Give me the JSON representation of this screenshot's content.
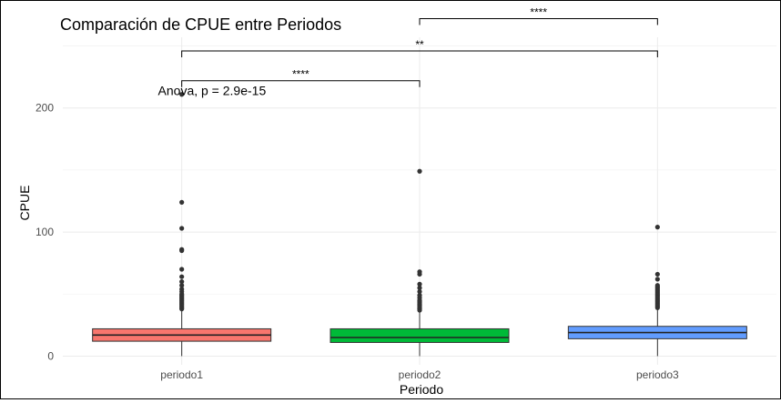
{
  "chart_data": {
    "type": "box",
    "title": "Comparación de CPUE entre Periodos",
    "xlabel": "Periodo",
    "ylabel": "CPUE",
    "ylim": [
      -7,
      257
    ],
    "y_ticks": [
      0,
      100,
      200
    ],
    "y_tick_labels": [
      "0",
      "100",
      "200"
    ],
    "categories": [
      "periodo1",
      "periodo2",
      "periodo3"
    ],
    "grid": true,
    "colors": [
      "#f8766d",
      "#00ba38",
      "#619cff"
    ],
    "boxes": [
      {
        "category": "periodo1",
        "q1": 12,
        "median": 17,
        "q3": 22,
        "whisker_low": 0,
        "whisker_high": 37,
        "outliers": [
          38,
          39,
          40,
          41,
          42,
          43,
          44,
          45,
          46,
          47,
          48,
          49,
          50,
          52,
          54,
          57,
          60,
          64,
          70,
          85,
          86,
          103,
          124,
          211
        ]
      },
      {
        "category": "periodo2",
        "q1": 11,
        "median": 15,
        "q3": 22,
        "whisker_low": 0,
        "whisker_high": 36,
        "outliers": [
          37,
          38,
          39,
          40,
          41,
          42,
          43,
          44,
          45,
          47,
          49,
          52,
          55,
          58,
          66,
          68,
          149
        ]
      },
      {
        "category": "periodo3",
        "q1": 14,
        "median": 19,
        "q3": 24,
        "whisker_low": 0,
        "whisker_high": 38,
        "outliers": [
          39,
          40,
          41,
          42,
          43,
          44,
          45,
          46,
          47,
          48,
          49,
          50,
          51,
          52,
          53,
          54,
          55,
          56,
          57,
          62,
          66,
          104
        ]
      }
    ],
    "annotations": [
      {
        "text": "Anova, p = 2.9e-15",
        "x": 0.9,
        "y": 214
      },
      {
        "text": "****",
        "from": "periodo1",
        "to": "periodo2",
        "y": 222
      },
      {
        "text": "**",
        "from": "periodo1",
        "to": "periodo3",
        "y": 246
      },
      {
        "text": "****",
        "from": "periodo2",
        "to": "periodo3",
        "y": 272
      }
    ]
  }
}
